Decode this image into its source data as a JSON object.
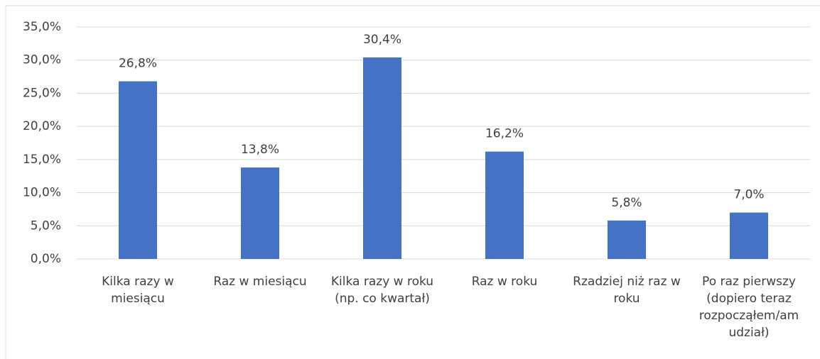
{
  "chart_data": {
    "type": "bar",
    "categories": [
      "Kilka razy w miesiącu",
      "Raz w miesiącu",
      "Kilka razy w roku (np. co kwartał)",
      "Raz w roku",
      "Rzadziej niż raz w roku",
      "Po raz pierwszy (dopiero teraz rozpocząłem/am udział)"
    ],
    "values": [
      26.8,
      13.8,
      30.4,
      16.2,
      5.8,
      7.0
    ],
    "value_labels": [
      "26,8%",
      "13,8%",
      "30,4%",
      "16,2%",
      "5,8%",
      "7,0%"
    ],
    "color": "#4472c4",
    "ylim": [
      0,
      35
    ],
    "yticks": [
      {
        "value": 0,
        "label": "0,0%"
      },
      {
        "value": 5,
        "label": "5,0%"
      },
      {
        "value": 10,
        "label": "10,0%"
      },
      {
        "value": 15,
        "label": "15,0%"
      },
      {
        "value": 20,
        "label": "20,0%"
      },
      {
        "value": 25,
        "label": "25,0%"
      },
      {
        "value": 30,
        "label": "30,0%"
      },
      {
        "value": 35,
        "label": "35,0%"
      }
    ],
    "grid": true
  }
}
